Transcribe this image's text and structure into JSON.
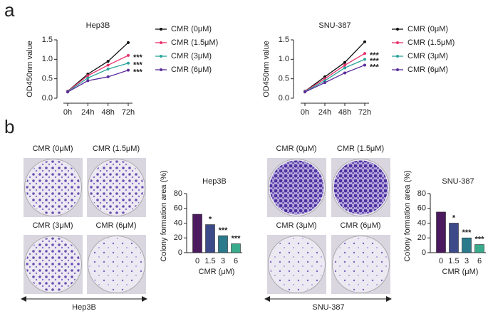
{
  "panel_labels": [
    "a",
    "b"
  ],
  "photo_groups": [
    {
      "labels": [
        "CMR (0μM)",
        "CMR (1.5μM)",
        "CMR (3μM)",
        "CMR (6μM)"
      ]
    },
    {
      "labels": [
        "CMR (0μM)",
        "CMR (1.5μM)",
        "CMR (3μM)",
        "CMR (6μM)"
      ]
    }
  ],
  "arrow_labels": [
    "Hep3B",
    "SNU-387"
  ],
  "chart_data": [
    {
      "type": "line",
      "title": "Hep3B",
      "ylabel": "OD450nm value",
      "categories": [
        "0h",
        "24h",
        "48h",
        "72h"
      ],
      "series": [
        {
          "name": "CMR (0μM)",
          "color": "#111111",
          "values": [
            0.18,
            0.62,
            0.95,
            1.43
          ]
        },
        {
          "name": "CMR (1.5μM)",
          "color": "#e8336b",
          "values": [
            0.18,
            0.58,
            0.85,
            1.1
          ],
          "annotation": "***"
        },
        {
          "name": "CMR (3μM)",
          "color": "#2aa39a",
          "values": [
            0.17,
            0.52,
            0.75,
            0.9
          ],
          "annotation": "***"
        },
        {
          "name": "CMR (6μM)",
          "color": "#5a2d9c",
          "values": [
            0.16,
            0.45,
            0.55,
            0.72
          ],
          "annotation": "***"
        }
      ],
      "ylim": [
        0,
        1.5
      ],
      "yticks": [
        {
          "value": 0,
          "label": "0.0"
        },
        0.5,
        {
          "value": 1,
          "label": "1.0"
        },
        1.5
      ],
      "legend": "right"
    },
    {
      "type": "line",
      "title": "SNU-387",
      "ylabel": "OD450nm value",
      "categories": [
        "0h",
        "24h",
        "48h",
        "72h"
      ],
      "series": [
        {
          "name": "CMR (0μM)",
          "color": "#111111",
          "values": [
            0.18,
            0.55,
            0.92,
            1.45
          ]
        },
        {
          "name": "CMR (1.5μM)",
          "color": "#e8336b",
          "values": [
            0.18,
            0.5,
            0.85,
            1.15
          ],
          "annotation": "***"
        },
        {
          "name": "CMR (3μM)",
          "color": "#2aa39a",
          "values": [
            0.17,
            0.45,
            0.78,
            1.0
          ],
          "annotation": "***"
        },
        {
          "name": "CMR (6μM)",
          "color": "#5a2d9c",
          "values": [
            0.16,
            0.4,
            0.65,
            0.85
          ],
          "annotation": "***"
        }
      ],
      "ylim": [
        0,
        1.5
      ],
      "yticks": [
        {
          "value": 0,
          "label": "0.0"
        },
        0.5,
        {
          "value": 1,
          "label": "1.0"
        },
        1.5
      ],
      "legend": "right"
    },
    {
      "type": "bar",
      "title": "Hep3B",
      "xlabel": "CMR (μM)",
      "ylabel": "Colony formation area (%)",
      "categories": [
        "0",
        "1.5",
        "3",
        "6"
      ],
      "values": [
        52,
        38,
        23,
        12
      ],
      "annotations": [
        null,
        "*",
        "***",
        "***"
      ],
      "colors": [
        "#4b1a5e",
        "#3d4a8a",
        "#2a7a8c",
        "#3aaa8c"
      ],
      "ylim": [
        0,
        80
      ],
      "yticks": [
        0,
        20,
        40,
        60,
        80
      ]
    },
    {
      "type": "bar",
      "title": "SNU-387",
      "xlabel": "CMR (μM)",
      "ylabel": "Colony formation area (%)",
      "categories": [
        "0",
        "1.5",
        "3",
        "6"
      ],
      "values": [
        55,
        40,
        20,
        11
      ],
      "annotations": [
        null,
        "*",
        "***",
        "***"
      ],
      "colors": [
        "#4b1a5e",
        "#3d4a8a",
        "#2a7a8c",
        "#3aaa8c"
      ],
      "ylim": [
        0,
        80
      ],
      "yticks": [
        0,
        20,
        40,
        60,
        80
      ]
    }
  ]
}
